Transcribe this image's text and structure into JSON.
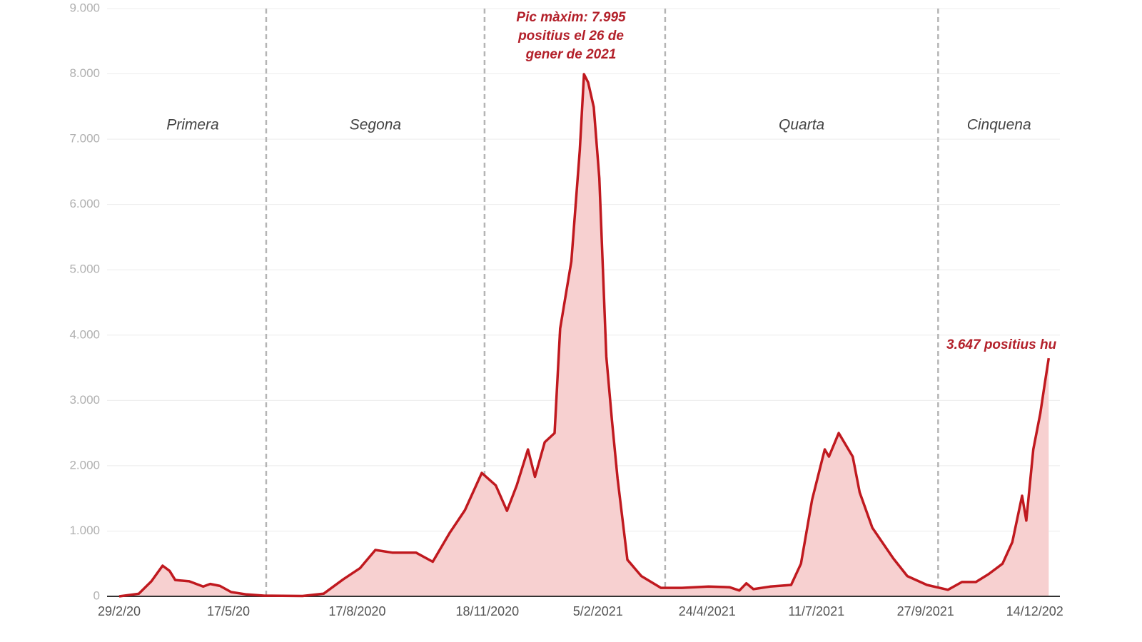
{
  "chart_data": {
    "type": "area",
    "color": "#c0191f",
    "fill": "#f7d0d0",
    "grid": true,
    "x": [
      "2020-02-29",
      "2020-03-14",
      "2020-03-23",
      "2020-03-31",
      "2020-04-05",
      "2020-04-09",
      "2020-04-19",
      "2020-04-29",
      "2020-05-04",
      "2020-05-11",
      "2020-05-19",
      "2020-05-30",
      "2020-06-12",
      "2020-07-09",
      "2020-07-24",
      "2020-08-07",
      "2020-08-19",
      "2020-08-30",
      "2020-09-11",
      "2020-09-28",
      "2020-10-10",
      "2020-10-22",
      "2020-11-02",
      "2020-11-14",
      "2020-11-24",
      "2020-12-02",
      "2020-12-09",
      "2020-12-17",
      "2020-12-22",
      "2020-12-29",
      "2021-01-05",
      "2021-01-09",
      "2021-01-17",
      "2021-01-23",
      "2021-01-26",
      "2021-01-29",
      "2021-02-02",
      "2021-02-06",
      "2021-02-11",
      "2021-02-15",
      "2021-02-19",
      "2021-02-26",
      "2021-03-08",
      "2021-03-22",
      "2021-04-06",
      "2021-04-25",
      "2021-05-10",
      "2021-05-17",
      "2021-05-22",
      "2021-05-27",
      "2021-06-08",
      "2021-06-23",
      "2021-06-30",
      "2021-07-08",
      "2021-07-17",
      "2021-07-20",
      "2021-07-27",
      "2021-08-06",
      "2021-08-11",
      "2021-08-20",
      "2021-09-04",
      "2021-09-14",
      "2021-09-28",
      "2021-10-13",
      "2021-10-23",
      "2021-11-02",
      "2021-11-11",
      "2021-11-21",
      "2021-11-28",
      "2021-12-05",
      "2021-12-08",
      "2021-12-13",
      "2021-12-18",
      "2021-12-21",
      "2021-12-24"
    ],
    "values": [
      0,
      40,
      230,
      470,
      390,
      250,
      230,
      150,
      190,
      160,
      65,
      30,
      10,
      5,
      40,
      260,
      430,
      710,
      670,
      670,
      530,
      970,
      1320,
      1890,
      1700,
      1310,
      1700,
      2250,
      1830,
      2360,
      2500,
      4100,
      5130,
      6830,
      7995,
      7870,
      7490,
      6400,
      3670,
      2690,
      1810,
      560,
      310,
      130,
      130,
      150,
      140,
      90,
      200,
      110,
      150,
      175,
      500,
      1480,
      2250,
      2140,
      2500,
      2140,
      1590,
      1050,
      580,
      310,
      175,
      100,
      220,
      220,
      340,
      500,
      830,
      1540,
      1160,
      2250,
      2800,
      3230,
      3647
    ],
    "xlim": [
      "2020-02-29",
      "2022-01-01"
    ],
    "xticks": [
      {
        "value": "2020-02-29",
        "label": "29/2/20"
      },
      {
        "value": "2020-05-17",
        "label": "17/5/20"
      },
      {
        "value": "2020-08-17",
        "label": "17/8/2020"
      },
      {
        "value": "2020-11-18",
        "label": "18/11/2020"
      },
      {
        "value": "2021-02-05",
        "label": "5/2/2021"
      },
      {
        "value": "2021-04-24",
        "label": "24/4/2021"
      },
      {
        "value": "2021-07-11",
        "label": "11/7/2021"
      },
      {
        "value": "2021-09-27",
        "label": "27/9/2021"
      },
      {
        "value": "2021-12-14",
        "label": "14/12/202"
      }
    ],
    "ylim": [
      0,
      9000
    ],
    "yticks": [
      0,
      {
        "value": 1000,
        "label": "1.000"
      },
      {
        "value": 2000,
        "label": "2.000"
      },
      {
        "value": 3000,
        "label": "3.000"
      },
      {
        "value": 4000,
        "label": "4.000"
      },
      {
        "value": 5000,
        "label": "5.000"
      },
      {
        "value": 6000,
        "label": "6.000"
      },
      {
        "value": 7000,
        "label": "7.000"
      },
      {
        "value": 8000,
        "label": "8.000"
      },
      {
        "value": 9000,
        "label": "9.000"
      }
    ],
    "phases": [
      "Primera",
      "Segona",
      null,
      "Quarta",
      "Cinquena"
    ],
    "phase_boundaries": [
      "2020-06-13",
      "2020-11-16",
      "2021-03-25",
      "2021-10-06"
    ],
    "annotations": [
      [
        "Pic màxim: 7.995",
        "positius el 26 de",
        "gener de 2021"
      ],
      [
        "3.647 positius hu"
      ]
    ]
  }
}
